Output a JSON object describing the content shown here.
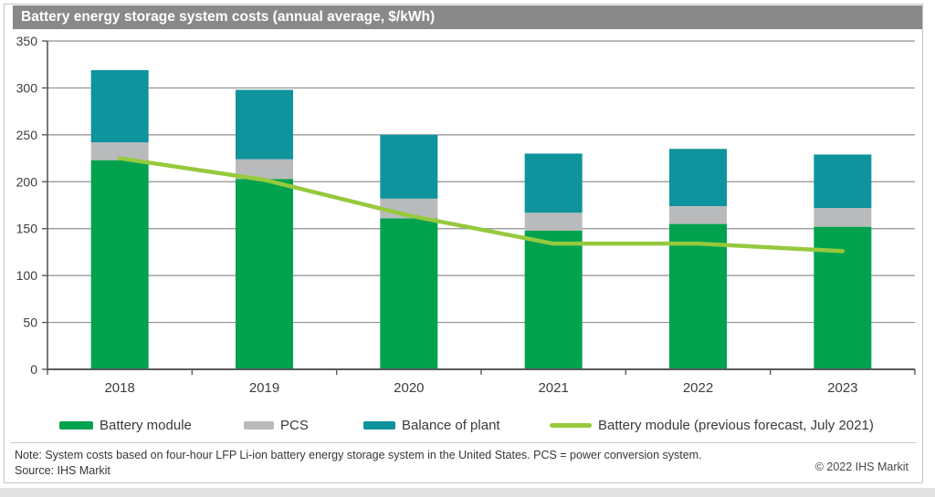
{
  "title": "Battery energy storage system costs (annual average, $/kWh)",
  "colors": {
    "title_bar_bg": "#898989",
    "title_text": "#ffffff",
    "battery_module": "#00a24e",
    "pcs": "#b9babc",
    "balance_of_plant": "#0f939d",
    "forecast_line": "#96c93d",
    "gridline": "#8f8f8f",
    "axis": "#595959",
    "axis_text": "#3d3d3d",
    "panel_border": "#c6c6c6"
  },
  "chart_data": {
    "type": "bar",
    "stacked": true,
    "title": "Battery energy storage system costs (annual average, $/kWh)",
    "categories": [
      "2018",
      "2019",
      "2020",
      "2021",
      "2022",
      "2023"
    ],
    "series": [
      {
        "name": "Battery module",
        "type": "bar",
        "color": "#00a24e",
        "values": [
          223,
          203,
          161,
          148,
          155,
          152
        ]
      },
      {
        "name": "PCS",
        "type": "bar",
        "color": "#b9babc",
        "values": [
          19,
          21,
          21,
          19,
          19,
          20
        ]
      },
      {
        "name": "Balance of plant",
        "type": "bar",
        "color": "#0f939d",
        "values": [
          77,
          74,
          68,
          63,
          61,
          57
        ]
      },
      {
        "name": "Battery module (previous forecast, July 2021)",
        "type": "line",
        "color": "#96c93d",
        "values": [
          225,
          202,
          164,
          134,
          134,
          126
        ]
      }
    ],
    "stack_totals": [
      319,
      298,
      250,
      230,
      235,
      229
    ],
    "ylim": [
      0,
      350
    ],
    "yticks": [
      0,
      50,
      100,
      150,
      200,
      250,
      300,
      350
    ],
    "xlabel": "",
    "ylabel": "",
    "grid": true,
    "legend_position": "bottom"
  },
  "footer": {
    "note": "Note: System costs based on four-hour LFP Li-ion battery energy storage system in the United States. PCS = power conversion system.",
    "source": "Source: IHS Markit",
    "copyright": "© 2022 IHS Markit"
  }
}
